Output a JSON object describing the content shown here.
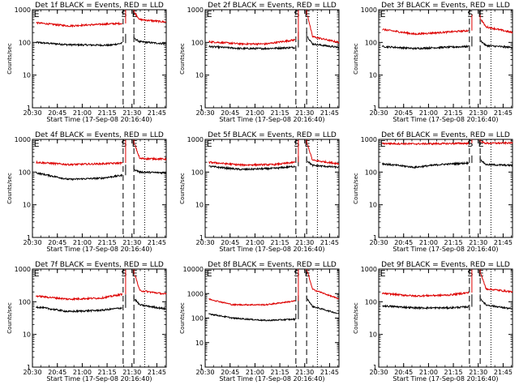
{
  "figure": {
    "colors": {
      "background": "#ffffff",
      "black_series": "#000000",
      "red_series": "#dd0000"
    },
    "event_markers": [
      "E",
      "S",
      "E"
    ]
  },
  "chart_data": [
    {
      "type": "line",
      "title": "Det 1f BLACK = Events, RED = LLD",
      "xlabel": "Start Time (17-Sep-08 20:16:40)",
      "ylabel": "Counts/sec",
      "yscale": "log",
      "ylim": [
        1,
        1000
      ],
      "yticks": [
        "1",
        "10",
        "100",
        "1000"
      ],
      "xticks": [
        "20:30",
        "20:45",
        "21:00",
        "21:15",
        "21:30",
        "21:45"
      ],
      "x_range_min": [
        13.3,
        94
      ],
      "dotted_lines_min": [
        13.3,
        81
      ],
      "dashed_lines_min": [
        68,
        74.5
      ],
      "gap_min": [
        69.5,
        74.5
      ],
      "series": [
        {
          "name": "BLACK = Events",
          "color": "#000000",
          "pre_gap": [
            [
              15.5,
              100
            ],
            [
              35,
              85
            ],
            [
              60,
              82
            ],
            [
              67.5,
              95
            ]
          ],
          "post_gap": [
            [
              75,
              130
            ],
            [
              78,
              105
            ],
            [
              94,
              90
            ]
          ]
        },
        {
          "name": "RED = LLD",
          "color": "#dd0000",
          "pre_gap": [
            [
              15.5,
              400
            ],
            [
              35,
              320
            ],
            [
              60,
              370
            ],
            [
              67.5,
              380
            ]
          ],
          "post_gap": [
            [
              75,
              800
            ],
            [
              78,
              500
            ],
            [
              94,
              420
            ]
          ]
        }
      ]
    },
    {
      "type": "line",
      "title": "Det 2f BLACK = Events, RED = LLD",
      "xlabel": "Start Time (17-Sep-08 20:16:40)",
      "ylabel": "Counts/sec",
      "yscale": "log",
      "ylim": [
        1,
        1000
      ],
      "yticks": [
        "1",
        "10",
        "100",
        "1000"
      ],
      "xticks": [
        "20:30",
        "20:45",
        "21:00",
        "21:15",
        "21:30",
        "21:45"
      ],
      "x_range_min": [
        13.3,
        94
      ],
      "dotted_lines_min": [
        13.3,
        81
      ],
      "dashed_lines_min": [
        68,
        74.5
      ],
      "gap_min": [
        69.5,
        74.5
      ],
      "series": [
        {
          "name": "BLACK = Events",
          "color": "#000000",
          "pre_gap": [
            [
              15.5,
              75
            ],
            [
              35,
              65
            ],
            [
              50,
              65
            ],
            [
              67.5,
              70
            ]
          ],
          "post_gap": [
            [
              75,
              150
            ],
            [
              78,
              90
            ],
            [
              94,
              70
            ]
          ]
        },
        {
          "name": "RED = LLD",
          "color": "#dd0000",
          "pre_gap": [
            [
              15.5,
              105
            ],
            [
              35,
              90
            ],
            [
              50,
              90
            ],
            [
              67.5,
              120
            ]
          ],
          "post_gap": [
            [
              75,
              700
            ],
            [
              78,
              150
            ],
            [
              94,
              100
            ]
          ]
        }
      ]
    },
    {
      "type": "line",
      "title": "Det 3f BLACK = Events, RED = LLD",
      "xlabel": "Start Time (17-Sep-08 20:16:40)",
      "ylabel": "Counts/sec",
      "yscale": "log",
      "ylim": [
        1,
        1000
      ],
      "yticks": [
        "1",
        "10",
        "100",
        "1000"
      ],
      "xticks": [
        "20:30",
        "20:45",
        "21:00",
        "21:15",
        "21:30",
        "21:45"
      ],
      "x_range_min": [
        13.3,
        94
      ],
      "dotted_lines_min": [
        13.3,
        81
      ],
      "dashed_lines_min": [
        68,
        74.5
      ],
      "gap_min": [
        69.5,
        74.5
      ],
      "series": [
        {
          "name": "BLACK = Events",
          "color": "#000000",
          "pre_gap": [
            [
              15.5,
              75
            ],
            [
              35,
              65
            ],
            [
              50,
              70
            ],
            [
              67.5,
              75
            ]
          ],
          "post_gap": [
            [
              75,
              110
            ],
            [
              78,
              80
            ],
            [
              94,
              70
            ]
          ]
        },
        {
          "name": "RED = LLD",
          "color": "#dd0000",
          "pre_gap": [
            [
              15.5,
              250
            ],
            [
              35,
              180
            ],
            [
              50,
              200
            ],
            [
              67.5,
              230
            ]
          ],
          "post_gap": [
            [
              75,
              500
            ],
            [
              78,
              300
            ],
            [
              94,
              200
            ]
          ]
        }
      ]
    },
    {
      "type": "line",
      "title": "Det 4f BLACK = Events, RED = LLD",
      "xlabel": "Start Time (17-Sep-08 20:16:40)",
      "ylabel": "Counts/sec",
      "yscale": "log",
      "ylim": [
        1,
        1000
      ],
      "yticks": [
        "1",
        "10",
        "100",
        "1000"
      ],
      "xticks": [
        "20:30",
        "20:45",
        "21:00",
        "21:15",
        "21:30",
        "21:45"
      ],
      "x_range_min": [
        13.3,
        94
      ],
      "dotted_lines_min": [
        13.3,
        81
      ],
      "dashed_lines_min": [
        68,
        74.5
      ],
      "gap_min": [
        69.5,
        74.5
      ],
      "series": [
        {
          "name": "BLACK = Events",
          "color": "#000000",
          "pre_gap": [
            [
              15.5,
              95
            ],
            [
              35,
              60
            ],
            [
              55,
              65
            ],
            [
              67.5,
              80
            ]
          ],
          "post_gap": [
            [
              75,
              120
            ],
            [
              78,
              100
            ],
            [
              94,
              95
            ]
          ]
        },
        {
          "name": "RED = LLD",
          "color": "#dd0000",
          "pre_gap": [
            [
              15.5,
              200
            ],
            [
              35,
              170
            ],
            [
              55,
              180
            ],
            [
              67.5,
              190
            ]
          ],
          "post_gap": [
            [
              75,
              700
            ],
            [
              78,
              260
            ],
            [
              94,
              250
            ]
          ]
        }
      ]
    },
    {
      "type": "line",
      "title": "Det 5f BLACK = Events, RED = LLD",
      "xlabel": "Start Time (17-Sep-08 20:16:40)",
      "ylabel": "Counts/sec",
      "yscale": "log",
      "ylim": [
        1,
        1000
      ],
      "yticks": [
        "1",
        "10",
        "100",
        "1000"
      ],
      "xticks": [
        "20:30",
        "20:45",
        "21:00",
        "21:15",
        "21:30",
        "21:45"
      ],
      "x_range_min": [
        13.3,
        94
      ],
      "dotted_lines_min": [
        13.3,
        81
      ],
      "dashed_lines_min": [
        68,
        74.5
      ],
      "gap_min": [
        69.5,
        74.5
      ],
      "series": [
        {
          "name": "BLACK = Events",
          "color": "#000000",
          "pre_gap": [
            [
              15.5,
              150
            ],
            [
              35,
              120
            ],
            [
              55,
              130
            ],
            [
              67.5,
              150
            ]
          ],
          "post_gap": [
            [
              75,
              220
            ],
            [
              78,
              160
            ],
            [
              94,
              140
            ]
          ]
        },
        {
          "name": "RED = LLD",
          "color": "#dd0000",
          "pre_gap": [
            [
              15.5,
              200
            ],
            [
              35,
              165
            ],
            [
              55,
              170
            ],
            [
              67.5,
              200
            ]
          ],
          "post_gap": [
            [
              75,
              700
            ],
            [
              78,
              230
            ],
            [
              94,
              180
            ]
          ]
        }
      ]
    },
    {
      "type": "line",
      "title": "Det 6f BLACK = Events, RED = LLD",
      "xlabel": "Start Time (17-Sep-08 20:16:40)",
      "ylabel": "Counts/sec",
      "yscale": "log",
      "ylim": [
        1,
        1000
      ],
      "yticks": [
        "1",
        "10",
        "100",
        "1000"
      ],
      "xticks": [
        "20:30",
        "20:45",
        "21:00",
        "21:15",
        "21:30",
        "21:45"
      ],
      "x_range_min": [
        13.3,
        94
      ],
      "dotted_lines_min": [
        13.3,
        81
      ],
      "dashed_lines_min": [
        68,
        74.5
      ],
      "gap_min": [
        69.5,
        74.5
      ],
      "series": [
        {
          "name": "BLACK = Events",
          "color": "#000000",
          "pre_gap": [
            [
              15.5,
              180
            ],
            [
              35,
              140
            ],
            [
              50,
              170
            ],
            [
              67.5,
              190
            ]
          ],
          "post_gap": [
            [
              75,
              230
            ],
            [
              78,
              170
            ],
            [
              94,
              160
            ]
          ]
        },
        {
          "name": "RED = LLD",
          "color": "#dd0000",
          "pre_gap": [
            [
              15.5,
              750
            ],
            [
              35,
              730
            ],
            [
              50,
              740
            ],
            [
              67.5,
              760
            ]
          ],
          "post_gap": [
            [
              75,
              850
            ],
            [
              78,
              760
            ],
            [
              94,
              780
            ]
          ]
        }
      ]
    },
    {
      "type": "line",
      "title": "Det 7f BLACK = Events, RED = LLD",
      "xlabel": "Start Time (17-Sep-08 20:16:40)",
      "ylabel": "Counts/sec",
      "yscale": "log",
      "ylim": [
        1,
        1000
      ],
      "yticks": [
        "1",
        "10",
        "100",
        "1000"
      ],
      "xticks": [
        "20:30",
        "20:45",
        "21:00",
        "21:15",
        "21:30",
        "21:45"
      ],
      "x_range_min": [
        13.3,
        94
      ],
      "dotted_lines_min": [
        13.3,
        81
      ],
      "dashed_lines_min": [
        68,
        74.5
      ],
      "gap_min": [
        69.5,
        74.5
      ],
      "series": [
        {
          "name": "BLACK = Events",
          "color": "#000000",
          "pre_gap": [
            [
              15.5,
              70
            ],
            [
              35,
              50
            ],
            [
              55,
              55
            ],
            [
              67.5,
              65
            ]
          ],
          "post_gap": [
            [
              75,
              120
            ],
            [
              78,
              80
            ],
            [
              94,
              60
            ]
          ]
        },
        {
          "name": "RED = LLD",
          "color": "#dd0000",
          "pre_gap": [
            [
              15.5,
              150
            ],
            [
              35,
              120
            ],
            [
              55,
              130
            ],
            [
              67.5,
              170
            ]
          ],
          "post_gap": [
            [
              75,
              700
            ],
            [
              78,
              220
            ],
            [
              94,
              170
            ]
          ]
        }
      ]
    },
    {
      "type": "line",
      "title": "Det 8f BLACK = Events, RED = LLD",
      "xlabel": "Start Time (17-Sep-08 20:16:40)",
      "ylabel": "Counts/sec",
      "yscale": "log",
      "ylim": [
        1,
        10000
      ],
      "yticks": [
        "1",
        "10",
        "100",
        "1000",
        "10000"
      ],
      "xticks": [
        "20:30",
        "20:45",
        "21:00",
        "21:15",
        "21:30",
        "21:45"
      ],
      "x_range_min": [
        13.3,
        94
      ],
      "dotted_lines_min": [
        13.3,
        81
      ],
      "dashed_lines_min": [
        68,
        74.5
      ],
      "gap_min": [
        69.5,
        74.5
      ],
      "series": [
        {
          "name": "BLACK = Events",
          "color": "#000000",
          "pre_gap": [
            [
              15.5,
              150
            ],
            [
              30,
              100
            ],
            [
              50,
              80
            ],
            [
              67.5,
              90
            ]
          ],
          "post_gap": [
            [
              75,
              600
            ],
            [
              78,
              300
            ],
            [
              94,
              150
            ]
          ]
        },
        {
          "name": "RED = LLD",
          "color": "#dd0000",
          "pre_gap": [
            [
              15.5,
              600
            ],
            [
              30,
              350
            ],
            [
              50,
              350
            ],
            [
              67.5,
              500
            ]
          ],
          "post_gap": [
            [
              75,
              8000
            ],
            [
              78,
              1500
            ],
            [
              94,
              600
            ]
          ]
        }
      ]
    },
    {
      "type": "line",
      "title": "Det 9f BLACK = Events, RED = LLD",
      "xlabel": "Start Time (17-Sep-08 20:16:40)",
      "ylabel": "Counts/sec",
      "yscale": "log",
      "ylim": [
        1,
        1000
      ],
      "yticks": [
        "1",
        "10",
        "100",
        "1000"
      ],
      "xticks": [
        "20:30",
        "20:45",
        "21:00",
        "21:15",
        "21:30",
        "21:45"
      ],
      "x_range_min": [
        13.3,
        94
      ],
      "dotted_lines_min": [
        13.3,
        81
      ],
      "dashed_lines_min": [
        68,
        74.5
      ],
      "gap_min": [
        69.5,
        74.5
      ],
      "series": [
        {
          "name": "BLACK = Events",
          "color": "#000000",
          "pre_gap": [
            [
              15.5,
              75
            ],
            [
              35,
              65
            ],
            [
              55,
              65
            ],
            [
              67.5,
              70
            ]
          ],
          "post_gap": [
            [
              75,
              120
            ],
            [
              78,
              80
            ],
            [
              94,
              60
            ]
          ]
        },
        {
          "name": "RED = LLD",
          "color": "#dd0000",
          "pre_gap": [
            [
              15.5,
              180
            ],
            [
              35,
              150
            ],
            [
              55,
              160
            ],
            [
              67.5,
              190
            ]
          ],
          "post_gap": [
            [
              75,
              700
            ],
            [
              78,
              250
            ],
            [
              94,
              200
            ]
          ]
        }
      ]
    }
  ]
}
